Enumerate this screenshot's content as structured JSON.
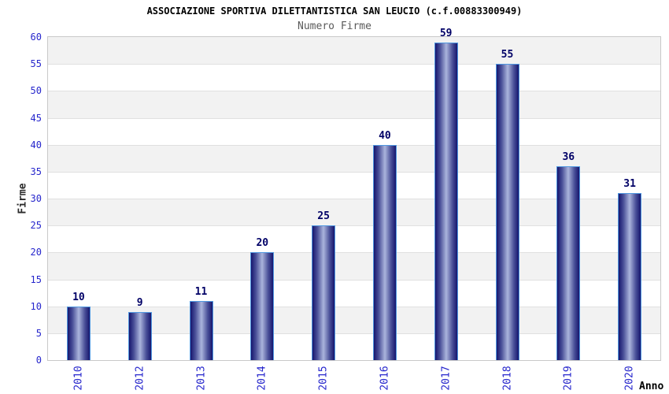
{
  "chart_data": {
    "type": "bar",
    "title": "ASSOCIAZIONE SPORTIVA DILETTANTISTICA SAN LEUCIO (c.f.00883300949)",
    "subtitle": "Numero Firme",
    "xlabel": "Anno",
    "ylabel": "Firme",
    "categories": [
      "2010",
      "2012",
      "2013",
      "2014",
      "2015",
      "2016",
      "2017",
      "2018",
      "2019",
      "2020"
    ],
    "values": [
      10,
      9,
      11,
      20,
      25,
      40,
      59,
      55,
      36,
      31
    ],
    "yticks": [
      0,
      5,
      10,
      15,
      20,
      25,
      30,
      35,
      40,
      45,
      50,
      55,
      60
    ],
    "ylim": [
      0,
      60
    ],
    "grid": "horizontal-bands-alternating",
    "legend_position": "none"
  },
  "colors": {
    "title": "#000000",
    "subtitle": "#5a5a5a",
    "tick_label_blue": "#2626cc",
    "value_label_navy": "#000066",
    "bar_edge_dark": "#16166e",
    "bar_mid": "#4a5098",
    "bar_center_light": "#aab4dc",
    "bar_border": "#4f97e0",
    "band_gray": "#f2f2f2",
    "band_white": "#ffffff",
    "grid_line": "#e0e0e0",
    "plot_border": "#c9c9c9"
  }
}
